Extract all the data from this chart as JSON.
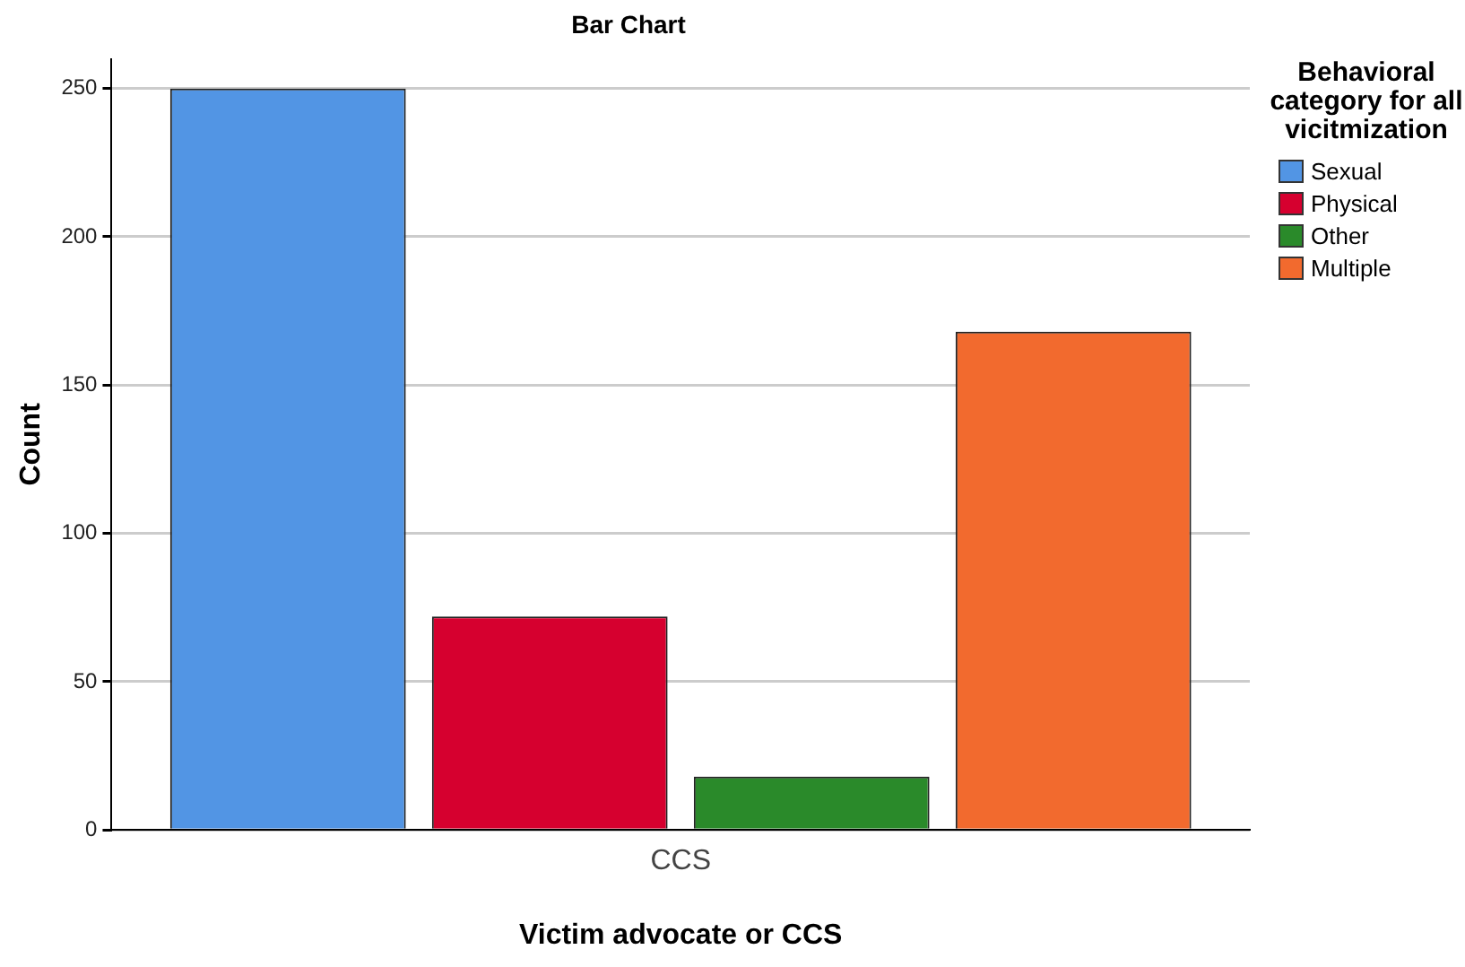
{
  "chart_data": {
    "type": "bar",
    "title": "Bar Chart",
    "xlabel": "Victim advocate or CCS",
    "ylabel": "Count",
    "legend_title": "Behavioral category for all vicitmization",
    "categories": [
      "CCS"
    ],
    "series": [
      {
        "name": "Sexual",
        "color": "#5295e4",
        "values": [
          250
        ]
      },
      {
        "name": "Physical",
        "color": "#d6002f",
        "values": [
          72
        ]
      },
      {
        "name": "Other",
        "color": "#2a8a2a",
        "values": [
          18
        ]
      },
      {
        "name": "Multiple",
        "color": "#f26a2e",
        "values": [
          168
        ]
      }
    ],
    "ylim": [
      0,
      260
    ],
    "yticks": [
      0,
      50,
      100,
      150,
      200,
      250
    ],
    "grid": "y",
    "legend": "top right"
  }
}
